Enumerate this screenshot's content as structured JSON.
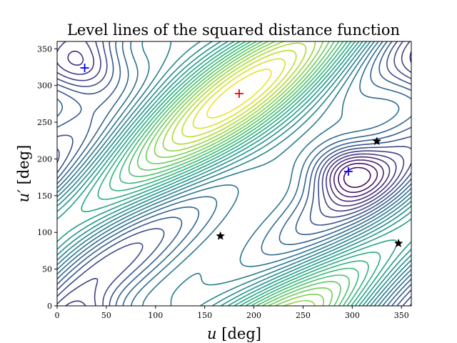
{
  "chart_data": {
    "type": "contour",
    "title": "Level lines of the squared distance function",
    "xlabel": "u [deg]",
    "ylabel": "u′ [deg]",
    "xlim": [
      0,
      360
    ],
    "ylim": [
      0,
      360
    ],
    "x_ticks": [
      0,
      50,
      100,
      150,
      200,
      250,
      300,
      350
    ],
    "y_ticks": [
      0,
      50,
      100,
      150,
      200,
      250,
      300,
      350
    ],
    "grid": false,
    "legend": "none",
    "colormap": "viridis",
    "colors": {
      "maximum_marker": "#e8000b",
      "minimum_marker": "#0000ff",
      "saddle_marker": "#000000",
      "low_level": "#440154",
      "high_level": "#fde725"
    },
    "critical_points": {
      "maxima": [
        {
          "u": 185,
          "u_prime": 289
        }
      ],
      "minima": [
        {
          "u": 28,
          "u_prime": 324
        },
        {
          "u": 296,
          "u_prime": 183
        }
      ],
      "saddles": [
        {
          "u": 166,
          "u_prime": 95
        },
        {
          "u": 325,
          "u_prime": 224
        },
        {
          "u": 347,
          "u_prime": 85
        }
      ]
    },
    "marker_symbols": {
      "maxima": "plus",
      "minima": "plus",
      "saddles": "star"
    }
  }
}
